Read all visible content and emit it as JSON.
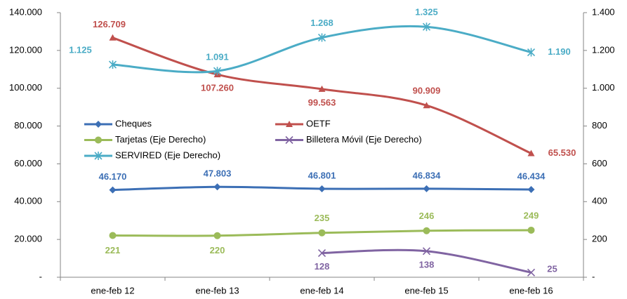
{
  "chart_data": {
    "type": "line",
    "categories": [
      "ene-feb 12",
      "ene-feb 13",
      "ene-feb 14",
      "ene-feb 15",
      "ene-feb 16"
    ],
    "ylim": [
      0,
      140000
    ],
    "yticks": [
      {
        "value": 0,
        "label": "-"
      },
      {
        "value": 20000,
        "label": "20.000"
      },
      {
        "value": 40000,
        "label": "40.000"
      },
      {
        "value": 60000,
        "label": "60.000"
      },
      {
        "value": 80000,
        "label": "80.000"
      },
      {
        "value": 100000,
        "label": "100.000"
      },
      {
        "value": 120000,
        "label": "120.000"
      },
      {
        "value": 140000,
        "label": "140.000"
      }
    ],
    "y2lim": [
      0,
      1400
    ],
    "y2ticks": [
      {
        "value": 0,
        "label": "-"
      },
      200,
      400,
      600,
      800,
      {
        "value": 1000,
        "label": "1.000"
      },
      {
        "value": 1200,
        "label": "1.200"
      },
      {
        "value": 1400,
        "label": "1.400"
      }
    ],
    "grid": false,
    "smooth": true,
    "series": [
      {
        "name": "Cheques",
        "color": "#3c6fb5",
        "marker": "diamond",
        "values": [
          46170,
          47803,
          46801,
          46834,
          46434
        ],
        "value_labels": [
          "46.170",
          "47.803",
          "46.801",
          "46.834",
          "46.434"
        ]
      },
      {
        "name": "OETF",
        "color": "#c0504d",
        "marker": "triangle",
        "values": [
          126709,
          107260,
          99563,
          90909,
          65530
        ],
        "value_labels": [
          "126.709",
          "107.260",
          "99.563",
          "90.909",
          "65.530"
        ]
      },
      {
        "name": "Tarjetas (Eje Derecho)",
        "color": "#9bbb59",
        "marker": "circle",
        "axis": "y2",
        "values": [
          221,
          220,
          235,
          246,
          249
        ]
      },
      {
        "name": "Billetera Móvil (Eje Derecho)",
        "color": "#8064a2",
        "marker": "x",
        "axis": "y2",
        "values": [
          null,
          null,
          128,
          138,
          25
        ]
      },
      {
        "name": "SERVIRED (Eje Derecho)",
        "color": "#4bacc6",
        "marker": "star",
        "axis": "y2",
        "values": [
          1125,
          1091,
          1268,
          1325,
          1190
        ],
        "value_labels": [
          "1.125",
          "1.091",
          "1.268",
          "1.325",
          "1.190"
        ]
      }
    ]
  }
}
